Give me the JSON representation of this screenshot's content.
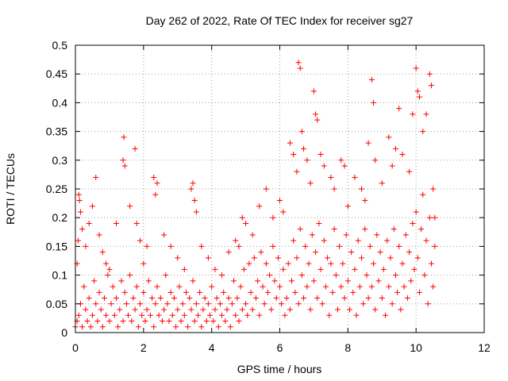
{
  "chart_data": {
    "type": "scatter",
    "title": "Day 262 of 2022, Rate Of TEC Index for receiver sg27",
    "xlabel": "GPS time / hours",
    "ylabel": "ROTI / TECUs",
    "xlim": [
      0,
      12
    ],
    "ylim": [
      0,
      0.5
    ],
    "xticks": [
      "0",
      "2",
      "4",
      "6",
      "8",
      "10",
      "12"
    ],
    "yticks": [
      "0",
      "0.05",
      "0.1",
      "0.15",
      "0.2",
      "0.25",
      "0.3",
      "0.35",
      "0.4",
      "0.45",
      "0.5"
    ],
    "grid": true,
    "marker": "+",
    "series_color": "#ff0000",
    "series": [
      {
        "values": [
          [
            0.05,
            0.12
          ],
          [
            0.08,
            0.16
          ],
          [
            0.1,
            0.24
          ],
          [
            0.12,
            0.23
          ],
          [
            0.15,
            0.21
          ],
          [
            0.2,
            0.18
          ],
          [
            0.3,
            0.15
          ],
          [
            0.4,
            0.19
          ],
          [
            0.5,
            0.22
          ],
          [
            0.6,
            0.27
          ],
          [
            0.7,
            0.17
          ],
          [
            0.8,
            0.14
          ],
          [
            0.9,
            0.12
          ],
          [
            1.0,
            0.11
          ],
          [
            1.2,
            0.19
          ],
          [
            1.4,
            0.3
          ],
          [
            1.42,
            0.34
          ],
          [
            1.45,
            0.29
          ],
          [
            1.6,
            0.22
          ],
          [
            1.75,
            0.32
          ],
          [
            1.8,
            0.19
          ],
          [
            1.9,
            0.16
          ],
          [
            2.0,
            0.12
          ],
          [
            2.1,
            0.15
          ],
          [
            2.3,
            0.27
          ],
          [
            2.35,
            0.24
          ],
          [
            2.4,
            0.26
          ],
          [
            2.6,
            0.17
          ],
          [
            2.8,
            0.15
          ],
          [
            3.0,
            0.13
          ],
          [
            3.2,
            0.11
          ],
          [
            3.4,
            0.25
          ],
          [
            3.45,
            0.26
          ],
          [
            3.5,
            0.23
          ],
          [
            3.55,
            0.21
          ],
          [
            3.7,
            0.15
          ],
          [
            3.9,
            0.13
          ],
          [
            4.1,
            0.11
          ],
          [
            4.3,
            0.1
          ],
          [
            4.5,
            0.14
          ],
          [
            4.7,
            0.16
          ],
          [
            4.8,
            0.15
          ],
          [
            4.9,
            0.2
          ],
          [
            5.0,
            0.19
          ],
          [
            5.2,
            0.17
          ],
          [
            5.4,
            0.22
          ],
          [
            5.6,
            0.25
          ],
          [
            5.8,
            0.2
          ],
          [
            6.0,
            0.23
          ],
          [
            6.1,
            0.21
          ],
          [
            6.3,
            0.33
          ],
          [
            6.4,
            0.31
          ],
          [
            6.5,
            0.28
          ],
          [
            6.55,
            0.47
          ],
          [
            6.6,
            0.46
          ],
          [
            6.65,
            0.35
          ],
          [
            6.7,
            0.32
          ],
          [
            6.8,
            0.3
          ],
          [
            6.9,
            0.26
          ],
          [
            7.0,
            0.42
          ],
          [
            7.05,
            0.38
          ],
          [
            7.1,
            0.37
          ],
          [
            7.2,
            0.31
          ],
          [
            7.3,
            0.29
          ],
          [
            7.5,
            0.27
          ],
          [
            7.6,
            0.25
          ],
          [
            7.8,
            0.3
          ],
          [
            7.9,
            0.29
          ],
          [
            8.0,
            0.22
          ],
          [
            8.2,
            0.27
          ],
          [
            8.4,
            0.25
          ],
          [
            8.5,
            0.23
          ],
          [
            8.6,
            0.33
          ],
          [
            8.7,
            0.44
          ],
          [
            8.75,
            0.4
          ],
          [
            8.8,
            0.3
          ],
          [
            9.0,
            0.26
          ],
          [
            9.2,
            0.34
          ],
          [
            9.3,
            0.29
          ],
          [
            9.4,
            0.32
          ],
          [
            9.5,
            0.39
          ],
          [
            9.6,
            0.31
          ],
          [
            9.8,
            0.28
          ],
          [
            9.9,
            0.38
          ],
          [
            10.0,
            0.46
          ],
          [
            10.05,
            0.42
          ],
          [
            10.1,
            0.41
          ],
          [
            10.2,
            0.35
          ],
          [
            10.3,
            0.38
          ],
          [
            10.4,
            0.45
          ],
          [
            10.45,
            0.43
          ],
          [
            10.5,
            0.25
          ],
          [
            10.55,
            0.2
          ],
          [
            0.0,
            0.01
          ],
          [
            0.05,
            0.02
          ],
          [
            0.1,
            0.03
          ],
          [
            0.15,
            0.05
          ],
          [
            0.2,
            0.01
          ],
          [
            0.25,
            0.08
          ],
          [
            0.3,
            0.04
          ],
          [
            0.35,
            0.02
          ],
          [
            0.4,
            0.06
          ],
          [
            0.45,
            0.01
          ],
          [
            0.5,
            0.03
          ],
          [
            0.55,
            0.09
          ],
          [
            0.6,
            0.05
          ],
          [
            0.65,
            0.02
          ],
          [
            0.7,
            0.07
          ],
          [
            0.75,
            0.04
          ],
          [
            0.8,
            0.01
          ],
          [
            0.85,
            0.06
          ],
          [
            0.9,
            0.03
          ],
          [
            0.95,
            0.1
          ],
          [
            1.0,
            0.02
          ],
          [
            1.05,
            0.05
          ],
          [
            1.1,
            0.08
          ],
          [
            1.15,
            0.03
          ],
          [
            1.2,
            0.06
          ],
          [
            1.25,
            0.01
          ],
          [
            1.3,
            0.04
          ],
          [
            1.35,
            0.09
          ],
          [
            1.4,
            0.02
          ],
          [
            1.45,
            0.07
          ],
          [
            1.5,
            0.05
          ],
          [
            1.55,
            0.03
          ],
          [
            1.6,
            0.1
          ],
          [
            1.65,
            0.02
          ],
          [
            1.7,
            0.06
          ],
          [
            1.75,
            0.04
          ],
          [
            1.8,
            0.08
          ],
          [
            1.85,
            0.01
          ],
          [
            1.9,
            0.05
          ],
          [
            1.95,
            0.03
          ],
          [
            2.0,
            0.07
          ],
          [
            2.05,
            0.02
          ],
          [
            2.1,
            0.04
          ],
          [
            2.15,
            0.09
          ],
          [
            2.2,
            0.03
          ],
          [
            2.25,
            0.06
          ],
          [
            2.3,
            0.01
          ],
          [
            2.35,
            0.05
          ],
          [
            2.4,
            0.08
          ],
          [
            2.45,
            0.03
          ],
          [
            2.5,
            0.06
          ],
          [
            2.55,
            0.02
          ],
          [
            2.6,
            0.04
          ],
          [
            2.65,
            0.1
          ],
          [
            2.7,
            0.05
          ],
          [
            2.75,
            0.02
          ],
          [
            2.8,
            0.07
          ],
          [
            2.85,
            0.03
          ],
          [
            2.9,
            0.06
          ],
          [
            2.95,
            0.01
          ],
          [
            3.0,
            0.04
          ],
          [
            3.05,
            0.08
          ],
          [
            3.1,
            0.02
          ],
          [
            3.15,
            0.05
          ],
          [
            3.2,
            0.03
          ],
          [
            3.25,
            0.07
          ],
          [
            3.3,
            0.01
          ],
          [
            3.35,
            0.06
          ],
          [
            3.4,
            0.04
          ],
          [
            3.45,
            0.09
          ],
          [
            3.5,
            0.02
          ],
          [
            3.55,
            0.05
          ],
          [
            3.6,
            0.03
          ],
          [
            3.65,
            0.07
          ],
          [
            3.7,
            0.01
          ],
          [
            3.75,
            0.04
          ],
          [
            3.8,
            0.06
          ],
          [
            3.85,
            0.02
          ],
          [
            3.9,
            0.05
          ],
          [
            3.95,
            0.03
          ],
          [
            4.0,
            0.08
          ],
          [
            4.05,
            0.02
          ],
          [
            4.1,
            0.04
          ],
          [
            4.15,
            0.06
          ],
          [
            4.2,
            0.01
          ],
          [
            4.25,
            0.05
          ],
          [
            4.3,
            0.03
          ],
          [
            4.35,
            0.07
          ],
          [
            4.4,
            0.02
          ],
          [
            4.45,
            0.04
          ],
          [
            4.5,
            0.06
          ],
          [
            4.55,
            0.01
          ],
          [
            4.6,
            0.05
          ],
          [
            4.65,
            0.09
          ],
          [
            4.7,
            0.03
          ],
          [
            4.75,
            0.06
          ],
          [
            4.8,
            0.02
          ],
          [
            4.85,
            0.08
          ],
          [
            4.9,
            0.04
          ],
          [
            4.95,
            0.11
          ],
          [
            5.0,
            0.05
          ],
          [
            5.05,
            0.03
          ],
          [
            5.1,
            0.12
          ],
          [
            5.15,
            0.07
          ],
          [
            5.2,
            0.04
          ],
          [
            5.25,
            0.13
          ],
          [
            5.3,
            0.06
          ],
          [
            5.35,
            0.09
          ],
          [
            5.4,
            0.03
          ],
          [
            5.45,
            0.14
          ],
          [
            5.5,
            0.08
          ],
          [
            5.55,
            0.05
          ],
          [
            5.6,
            0.12
          ],
          [
            5.65,
            0.07
          ],
          [
            5.7,
            0.1
          ],
          [
            5.75,
            0.04
          ],
          [
            5.8,
            0.15
          ],
          [
            5.85,
            0.09
          ],
          [
            5.9,
            0.06
          ],
          [
            5.95,
            0.13
          ],
          [
            6.0,
            0.08
          ],
          [
            6.05,
            0.05
          ],
          [
            6.1,
            0.11
          ],
          [
            6.15,
            0.03
          ],
          [
            6.2,
            0.06
          ],
          [
            6.25,
            0.12
          ],
          [
            6.3,
            0.04
          ],
          [
            6.35,
            0.09
          ],
          [
            6.4,
            0.16
          ],
          [
            6.45,
            0.07
          ],
          [
            6.5,
            0.13
          ],
          [
            6.55,
            0.05
          ],
          [
            6.6,
            0.18
          ],
          [
            6.65,
            0.1
          ],
          [
            6.7,
            0.06
          ],
          [
            6.75,
            0.15
          ],
          [
            6.8,
            0.08
          ],
          [
            6.85,
            0.12
          ],
          [
            6.9,
            0.04
          ],
          [
            6.95,
            0.17
          ],
          [
            7.0,
            0.09
          ],
          [
            7.05,
            0.14
          ],
          [
            7.1,
            0.06
          ],
          [
            7.15,
            0.19
          ],
          [
            7.2,
            0.11
          ],
          [
            7.25,
            0.05
          ],
          [
            7.3,
            0.16
          ],
          [
            7.35,
            0.08
          ],
          [
            7.4,
            0.13
          ],
          [
            7.45,
            0.03
          ],
          [
            7.5,
            0.12
          ],
          [
            7.55,
            0.07
          ],
          [
            7.6,
            0.18
          ],
          [
            7.65,
            0.1
          ],
          [
            7.7,
            0.04
          ],
          [
            7.75,
            0.15
          ],
          [
            7.8,
            0.08
          ],
          [
            7.85,
            0.12
          ],
          [
            7.9,
            0.06
          ],
          [
            7.95,
            0.17
          ],
          [
            8.0,
            0.09
          ],
          [
            8.05,
            0.04
          ],
          [
            8.1,
            0.14
          ],
          [
            8.15,
            0.07
          ],
          [
            8.2,
            0.11
          ],
          [
            8.25,
            0.03
          ],
          [
            8.3,
            0.16
          ],
          [
            8.35,
            0.08
          ],
          [
            8.4,
            0.13
          ],
          [
            8.45,
            0.05
          ],
          [
            8.5,
            0.18
          ],
          [
            8.55,
            0.1
          ],
          [
            8.6,
            0.06
          ],
          [
            8.65,
            0.15
          ],
          [
            8.7,
            0.08
          ],
          [
            8.75,
            0.12
          ],
          [
            8.8,
            0.04
          ],
          [
            8.85,
            0.17
          ],
          [
            8.9,
            0.09
          ],
          [
            8.95,
            0.14
          ],
          [
            9.0,
            0.06
          ],
          [
            9.05,
            0.11
          ],
          [
            9.1,
            0.03
          ],
          [
            9.15,
            0.16
          ],
          [
            9.2,
            0.08
          ],
          [
            9.25,
            0.13
          ],
          [
            9.3,
            0.05
          ],
          [
            9.35,
            0.18
          ],
          [
            9.4,
            0.1
          ],
          [
            9.45,
            0.07
          ],
          [
            9.5,
            0.15
          ],
          [
            9.55,
            0.04
          ],
          [
            9.6,
            0.12
          ],
          [
            9.65,
            0.08
          ],
          [
            9.7,
            0.17
          ],
          [
            9.75,
            0.06
          ],
          [
            9.8,
            0.14
          ],
          [
            9.85,
            0.09
          ],
          [
            9.9,
            0.19
          ],
          [
            9.95,
            0.11
          ],
          [
            10.0,
            0.21
          ],
          [
            10.05,
            0.13
          ],
          [
            10.1,
            0.07
          ],
          [
            10.15,
            0.18
          ],
          [
            10.2,
            0.24
          ],
          [
            10.25,
            0.1
          ],
          [
            10.3,
            0.16
          ],
          [
            10.35,
            0.05
          ],
          [
            10.4,
            0.2
          ],
          [
            10.45,
            0.12
          ],
          [
            10.5,
            0.08
          ],
          [
            10.55,
            0.15
          ]
        ]
      }
    ]
  }
}
